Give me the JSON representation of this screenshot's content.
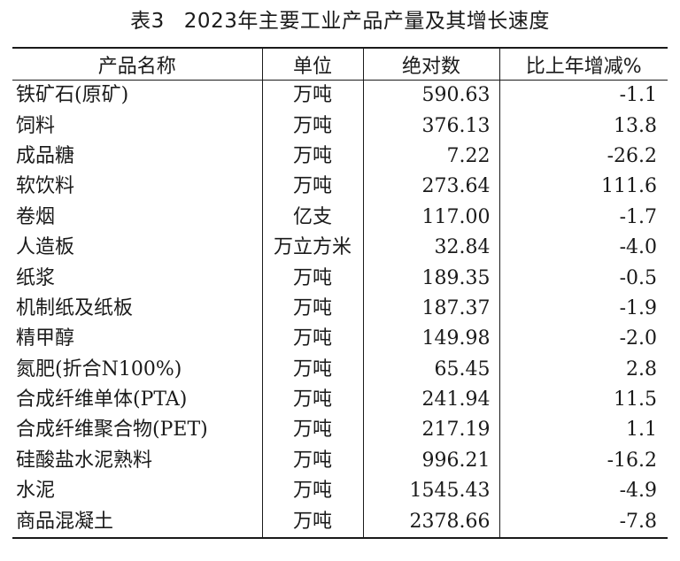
{
  "title": {
    "label": "表3",
    "text": "2023年主要工业产品产量及其增长速度"
  },
  "headers": [
    "产品名称",
    "单位",
    "绝对数",
    "比上年增减%"
  ],
  "rows": [
    {
      "name": "铁矿石(原矿)",
      "unit": "万吨",
      "value": "590.63",
      "change": "-1.1"
    },
    {
      "name": "饲料",
      "unit": "万吨",
      "value": "376.13",
      "change": "13.8"
    },
    {
      "name": "成品糖",
      "unit": "万吨",
      "value": "7.22",
      "change": "-26.2"
    },
    {
      "name": "软饮料",
      "unit": "万吨",
      "value": "273.64",
      "change": "111.6"
    },
    {
      "name": "卷烟",
      "unit": "亿支",
      "value": "117.00",
      "change": "-1.7"
    },
    {
      "name": "人造板",
      "unit": "万立方米",
      "value": "32.84",
      "change": "-4.0"
    },
    {
      "name": "纸浆",
      "unit": "万吨",
      "value": "189.35",
      "change": "-0.5"
    },
    {
      "name": "机制纸及纸板",
      "unit": "万吨",
      "value": "187.37",
      "change": "-1.9"
    },
    {
      "name": "精甲醇",
      "unit": "万吨",
      "value": "149.98",
      "change": "-2.0"
    },
    {
      "name": "氮肥(折合N100%)",
      "unit": "万吨",
      "value": "65.45",
      "change": "2.8"
    },
    {
      "name": "合成纤维单体(PTA)",
      "unit": "万吨",
      "value": "241.94",
      "change": "11.5"
    },
    {
      "name": "合成纤维聚合物(PET)",
      "unit": "万吨",
      "value": "217.19",
      "change": "1.1"
    },
    {
      "name": "硅酸盐水泥熟料",
      "unit": "万吨",
      "value": "996.21",
      "change": "-16.2"
    },
    {
      "name": "水泥",
      "unit": "万吨",
      "value": "1545.43",
      "change": "-4.9"
    },
    {
      "name": "商品混凝土",
      "unit": "万吨",
      "value": "2378.66",
      "change": "-7.8"
    }
  ]
}
